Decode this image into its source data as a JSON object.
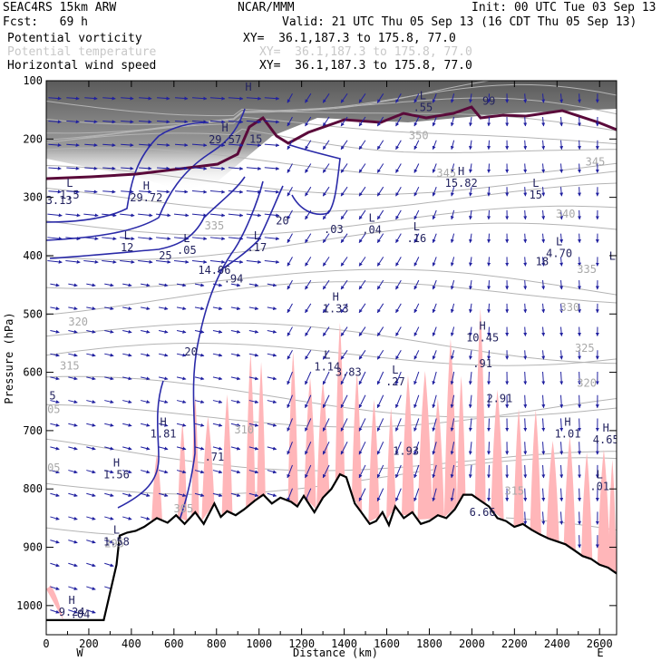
{
  "header": {
    "line1_left": "SEAC4RS 15km ARW",
    "line1_mid": "NCAR/MMM",
    "line1_right": "Init: 00 UTC Tue 03 Sep 13",
    "line2_left": "Fcst:   69 h",
    "line2_right": "Valid: 21 UTC Thu 05 Sep 13 (16 CDT Thu 05 Sep 13)"
  },
  "fields": [
    {
      "name": "Potential vorticity",
      "xy": "XY=  36.1,187.3 to 175.8, 77.0",
      "color": "#000000"
    },
    {
      "name": "Potential temperature",
      "xy": "XY=  36.1,187.3 to 175.8, 77.0",
      "color": "#c8c8c8"
    },
    {
      "name": "Horizontal wind speed",
      "xy": "XY=  36.1,187.3 to 175.8, 77.0",
      "color": "#000000"
    }
  ],
  "chart_data": {
    "type": "cross-section",
    "xlabel": "Distance (km)",
    "ylabel": "Pressure (hPa)",
    "xlim": [
      0,
      2680
    ],
    "ylim": [
      1050,
      100
    ],
    "x_ticks": [
      0,
      200,
      400,
      600,
      800,
      1000,
      1200,
      1400,
      1600,
      1800,
      2000,
      2200,
      2400,
      2600
    ],
    "y_ticks": [
      100,
      200,
      300,
      400,
      500,
      600,
      700,
      800,
      900,
      1000
    ],
    "x_end_labels": {
      "left": "W",
      "right": "E"
    },
    "theta_labels": [
      {
        "x": 1750,
        "p": 200,
        "text": "350"
      },
      {
        "x": 1880,
        "p": 265,
        "text": "345"
      },
      {
        "x": 2580,
        "p": 245,
        "text": "345"
      },
      {
        "x": 790,
        "p": 355,
        "text": "335"
      },
      {
        "x": 2440,
        "p": 335,
        "text": "340"
      },
      {
        "x": 2540,
        "p": 430,
        "text": "335"
      },
      {
        "x": 150,
        "p": 520,
        "text": "320"
      },
      {
        "x": 2460,
        "p": 495,
        "text": "330"
      },
      {
        "x": 2530,
        "p": 565,
        "text": "325"
      },
      {
        "x": 110,
        "p": 595,
        "text": "315"
      },
      {
        "x": 2540,
        "p": 625,
        "text": "320"
      },
      {
        "x": 20,
        "p": 670,
        "text": "305"
      },
      {
        "x": 20,
        "p": 770,
        "text": "305"
      },
      {
        "x": 930,
        "p": 705,
        "text": "310"
      },
      {
        "x": 2200,
        "p": 810,
        "text": "315"
      },
      {
        "x": 645,
        "p": 840,
        "text": "305"
      },
      {
        "x": 320,
        "p": 900,
        "text": "295"
      }
    ],
    "extrema": [
      {
        "x": 110,
        "p": 285,
        "label": "L",
        "value": "1.5"
      },
      {
        "x": 45,
        "p": 305,
        "label": "",
        "value": "13.13"
      },
      {
        "x": 470,
        "p": 290,
        "label": "H",
        "value": "29.72"
      },
      {
        "x": 840,
        "p": 190,
        "label": "H",
        "value": "29.57"
      },
      {
        "x": 950,
        "p": 120,
        "label": "H",
        "value": ""
      },
      {
        "x": 985,
        "p": 200,
        "label": "",
        "value": "15"
      },
      {
        "x": 1770,
        "p": 135,
        "label": "L",
        "value": ".55"
      },
      {
        "x": 2080,
        "p": 135,
        "label": "",
        "value": "99"
      },
      {
        "x": 1950,
        "p": 265,
        "label": "H",
        "value": "15.82"
      },
      {
        "x": 2300,
        "p": 285,
        "label": "L",
        "value": "15"
      },
      {
        "x": 380,
        "p": 375,
        "label": "L",
        "value": "12"
      },
      {
        "x": 560,
        "p": 400,
        "label": "",
        "value": "25"
      },
      {
        "x": 660,
        "p": 380,
        "label": "L",
        "value": ".05"
      },
      {
        "x": 990,
        "p": 375,
        "label": "L",
        "value": ".17"
      },
      {
        "x": 1110,
        "p": 340,
        "label": "",
        "value": "20"
      },
      {
        "x": 1350,
        "p": 355,
        "label": "",
        "value": ".03"
      },
      {
        "x": 1530,
        "p": 345,
        "label": "L",
        "value": ".04"
      },
      {
        "x": 1740,
        "p": 360,
        "label": "L",
        "value": ".16"
      },
      {
        "x": 2410,
        "p": 385,
        "label": "L",
        "value": "4.70"
      },
      {
        "x": 2330,
        "p": 410,
        "label": "",
        "value": "18"
      },
      {
        "x": 2660,
        "p": 410,
        "label": "L",
        "value": ""
      },
      {
        "x": 790,
        "p": 425,
        "label": "",
        "value": "14.06"
      },
      {
        "x": 880,
        "p": 440,
        "label": "",
        "value": ".94"
      },
      {
        "x": 1360,
        "p": 480,
        "label": "H",
        "value": "1.33"
      },
      {
        "x": 2050,
        "p": 530,
        "label": "H",
        "value": "10.45"
      },
      {
        "x": 680,
        "p": 565,
        "label": "",
        "value": "20"
      },
      {
        "x": 1320,
        "p": 580,
        "label": "L",
        "value": "1.14"
      },
      {
        "x": 1420,
        "p": 600,
        "label": "",
        "value": "3.83"
      },
      {
        "x": 2050,
        "p": 585,
        "label": "",
        "value": ".91"
      },
      {
        "x": 1640,
        "p": 605,
        "label": "L",
        "value": ".27"
      },
      {
        "x": 30,
        "p": 640,
        "label": "",
        "value": "5"
      },
      {
        "x": 2130,
        "p": 645,
        "label": "",
        "value": "2.91"
      },
      {
        "x": 550,
        "p": 695,
        "label": "H",
        "value": "1.81"
      },
      {
        "x": 2450,
        "p": 695,
        "label": "H",
        "value": "1.01"
      },
      {
        "x": 2630,
        "p": 705,
        "label": "H",
        "value": "4.65"
      },
      {
        "x": 790,
        "p": 745,
        "label": "",
        "value": ".71"
      },
      {
        "x": 1690,
        "p": 735,
        "label": "",
        "value": "1.93"
      },
      {
        "x": 330,
        "p": 765,
        "label": "H",
        "value": "1.56"
      },
      {
        "x": 2600,
        "p": 785,
        "label": "L",
        "value": ".01"
      },
      {
        "x": 2050,
        "p": 840,
        "label": "",
        "value": "6.66"
      },
      {
        "x": 330,
        "p": 880,
        "label": "L",
        "value": "1.58"
      },
      {
        "x": 120,
        "p": 1000,
        "label": "H",
        "value": "9.24"
      },
      {
        "x": 160,
        "p": 1015,
        "label": "",
        "value": ".04"
      }
    ],
    "terrain_p": [
      [
        0,
        1025
      ],
      [
        270,
        1025
      ],
      [
        330,
        930
      ],
      [
        345,
        880
      ],
      [
        380,
        875
      ],
      [
        420,
        872
      ],
      [
        460,
        865
      ],
      [
        520,
        850
      ],
      [
        570,
        858
      ],
      [
        610,
        845
      ],
      [
        650,
        860
      ],
      [
        700,
        840
      ],
      [
        740,
        860
      ],
      [
        790,
        825
      ],
      [
        820,
        848
      ],
      [
        850,
        838
      ],
      [
        890,
        845
      ],
      [
        930,
        835
      ],
      [
        980,
        820
      ],
      [
        1020,
        810
      ],
      [
        1060,
        825
      ],
      [
        1100,
        815
      ],
      [
        1150,
        822
      ],
      [
        1180,
        830
      ],
      [
        1210,
        812
      ],
      [
        1260,
        840
      ],
      [
        1300,
        815
      ],
      [
        1340,
        800
      ],
      [
        1380,
        775
      ],
      [
        1410,
        780
      ],
      [
        1450,
        825
      ],
      [
        1480,
        840
      ],
      [
        1520,
        860
      ],
      [
        1550,
        855
      ],
      [
        1580,
        840
      ],
      [
        1610,
        862
      ],
      [
        1640,
        830
      ],
      [
        1680,
        850
      ],
      [
        1720,
        840
      ],
      [
        1760,
        860
      ],
      [
        1800,
        855
      ],
      [
        1840,
        845
      ],
      [
        1880,
        850
      ],
      [
        1920,
        835
      ],
      [
        1960,
        810
      ],
      [
        2000,
        810
      ],
      [
        2040,
        820
      ],
      [
        2080,
        830
      ],
      [
        2120,
        850
      ],
      [
        2160,
        855
      ],
      [
        2200,
        865
      ],
      [
        2240,
        860
      ],
      [
        2280,
        870
      ],
      [
        2320,
        878
      ],
      [
        2360,
        885
      ],
      [
        2400,
        890
      ],
      [
        2440,
        895
      ],
      [
        2480,
        905
      ],
      [
        2520,
        915
      ],
      [
        2560,
        920
      ],
      [
        2600,
        930
      ],
      [
        2640,
        935
      ],
      [
        2680,
        945
      ]
    ]
  }
}
